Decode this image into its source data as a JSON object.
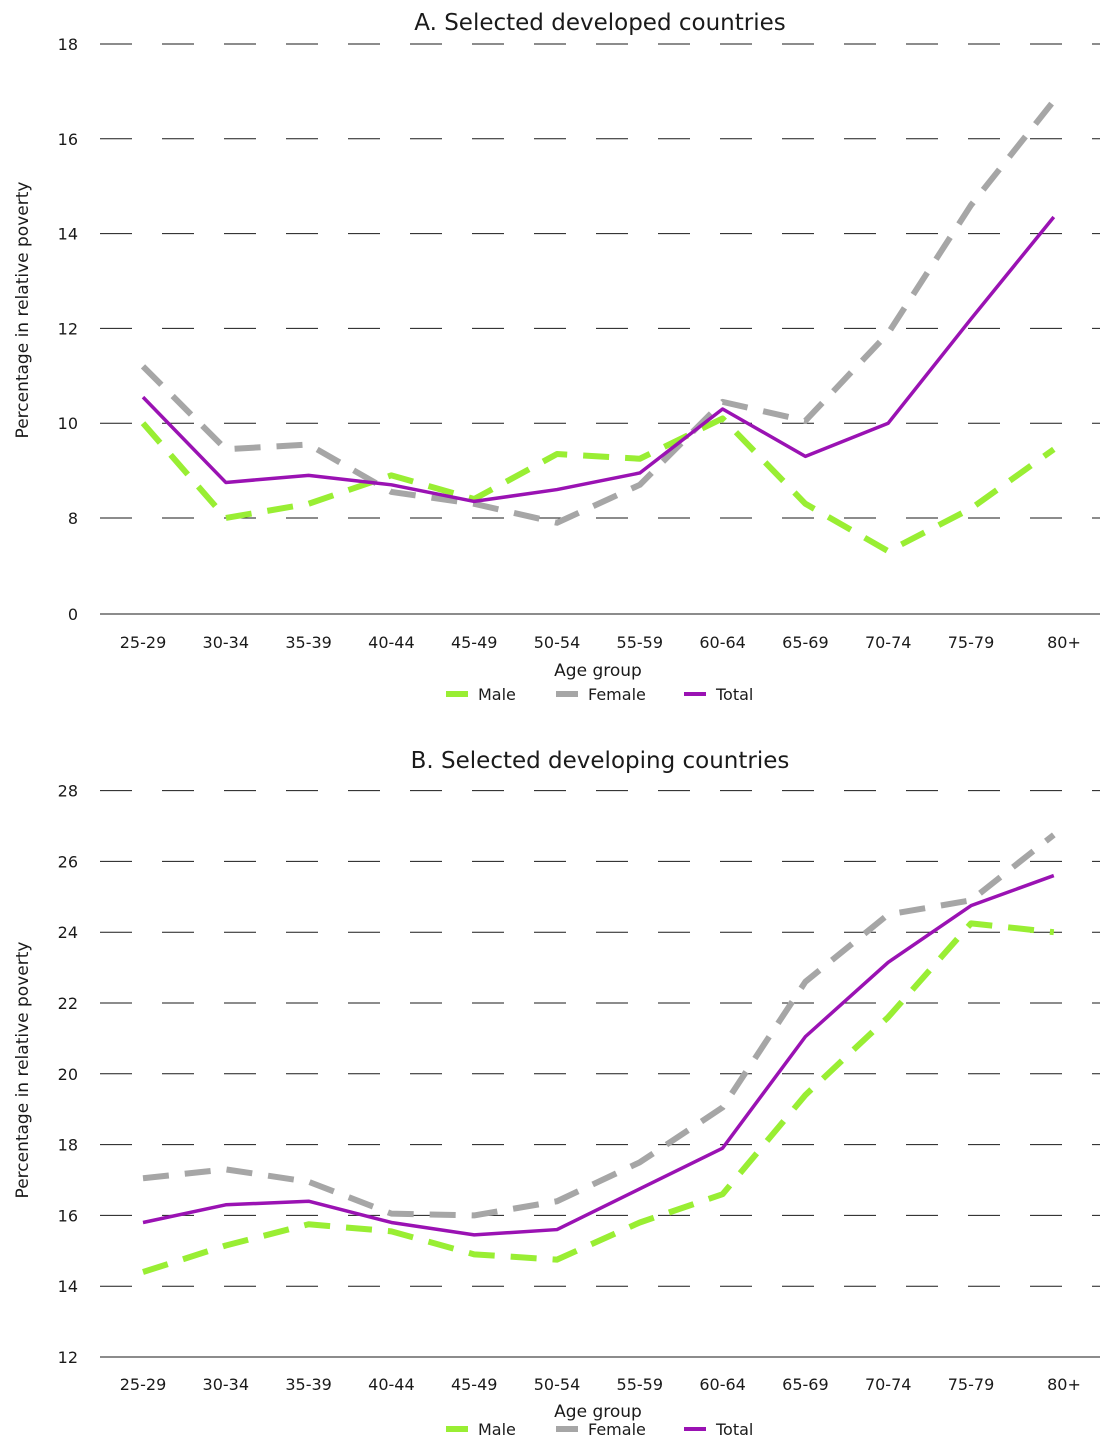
{
  "chart_data": [
    {
      "type": "line",
      "title": "A.  Selected developed countries",
      "xlabel": "Age group",
      "ylabel": "Percentage in relative poverty",
      "categories": [
        "25-29",
        "30-34",
        "35-39",
        "40-44",
        "45-49",
        "50-54",
        "55-59",
        "60-64",
        "65-69",
        "70-74",
        "75-79",
        "80+"
      ],
      "yticks": [
        0,
        8,
        10,
        12,
        14,
        16,
        18
      ],
      "axis_break": "between 0 and 8",
      "ylim": [
        8,
        18
      ],
      "grid": true,
      "legend_position": "bottom",
      "series": [
        {
          "name": "Male",
          "style": "dashed",
          "color": "#99ee33",
          "values": [
            10.0,
            8.0,
            8.3,
            8.9,
            8.4,
            9.35,
            9.25,
            10.1,
            8.3,
            7.3,
            8.2,
            9.45
          ]
        },
        {
          "name": "Female",
          "style": "dashed",
          "color": "#a6a6a6",
          "values": [
            11.2,
            9.45,
            9.55,
            8.55,
            8.3,
            7.9,
            8.7,
            10.45,
            10.05,
            11.9,
            14.6,
            16.8
          ]
        },
        {
          "name": "Total",
          "style": "solid",
          "color": "#9a12b3",
          "values": [
            10.55,
            8.75,
            8.9,
            8.7,
            8.35,
            8.6,
            8.95,
            10.3,
            9.3,
            10.0,
            12.2,
            14.35
          ]
        }
      ]
    },
    {
      "type": "line",
      "title": "B.  Selected developing countries",
      "xlabel": "Age group",
      "ylabel": "Percentage in relative poverty",
      "categories": [
        "25-29",
        "30-34",
        "35-39",
        "40-44",
        "45-49",
        "50-54",
        "55-59",
        "60-64",
        "65-69",
        "70-74",
        "75-79",
        "80+"
      ],
      "yticks": [
        12,
        14,
        16,
        18,
        20,
        22,
        24,
        26,
        28
      ],
      "ylim": [
        12,
        28
      ],
      "grid": true,
      "legend_position": "bottom",
      "series": [
        {
          "name": "Male",
          "style": "dashed",
          "color": "#99ee33",
          "values": [
            14.4,
            15.15,
            15.75,
            15.55,
            14.9,
            14.75,
            15.8,
            16.6,
            19.4,
            21.6,
            24.25,
            24.0
          ]
        },
        {
          "name": "Female",
          "style": "dashed",
          "color": "#a6a6a6",
          "values": [
            17.05,
            17.3,
            16.95,
            16.05,
            16.0,
            16.4,
            17.5,
            19.05,
            22.6,
            24.5,
            24.9,
            26.75
          ]
        },
        {
          "name": "Total",
          "style": "solid",
          "color": "#9a12b3",
          "values": [
            15.8,
            16.3,
            16.4,
            15.8,
            15.45,
            15.6,
            16.75,
            17.9,
            21.05,
            23.15,
            24.75,
            25.6
          ]
        }
      ]
    }
  ]
}
